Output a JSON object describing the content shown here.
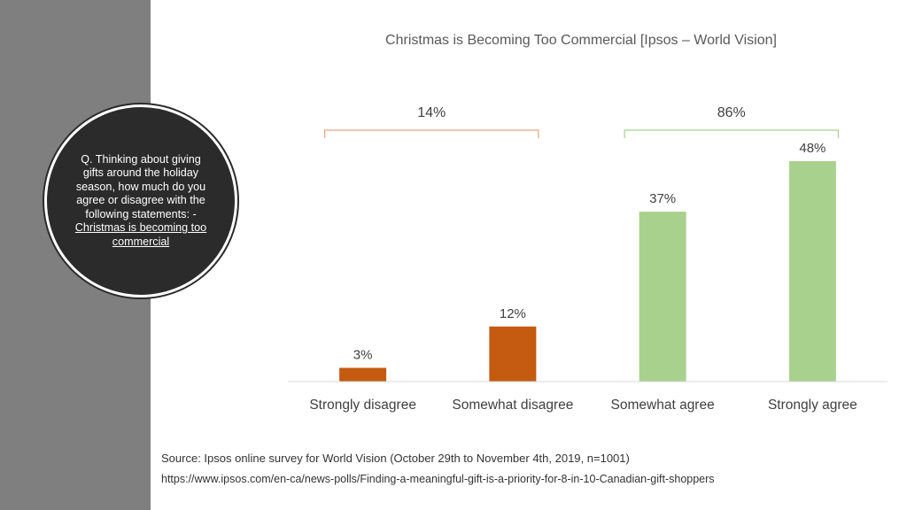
{
  "question": {
    "text": "Q. Thinking about giving gifts around the holiday season, how much do you agree or disagree with the following statements: -",
    "emphasis": "Christmas is becoming too commercial"
  },
  "source": {
    "line": "Source:  Ipsos online survey for World Vision (October 29th to November 4th, 2019, n=1001)",
    "url": "https://www.ipsos.com/en-ca/news-polls/Finding-a-meaningful-gift-is-a-priority-for-8-in-10-Canadian-gift-shoppers"
  },
  "chart_data": {
    "type": "bar",
    "title": "Christmas is Becoming Too Commercial [Ipsos – World Vision]",
    "categories": [
      "Strongly disagree",
      "Somewhat disagree",
      "Somewhat agree",
      "Strongly agree"
    ],
    "values": [
      3,
      12,
      37,
      48
    ],
    "value_labels": [
      "3%",
      "12%",
      "37%",
      "48%"
    ],
    "colors": [
      "#c55a11",
      "#c55a11",
      "#a9d18e",
      "#a9d18e"
    ],
    "groups": [
      {
        "label": "14%",
        "from": 0,
        "to": 1,
        "color": "#e8a385"
      },
      {
        "label": "86%",
        "from": 2,
        "to": 3,
        "color": "#a9d18e"
      }
    ],
    "ylim": [
      0,
      48
    ],
    "grid": false,
    "xlabel": "",
    "ylabel": ""
  }
}
